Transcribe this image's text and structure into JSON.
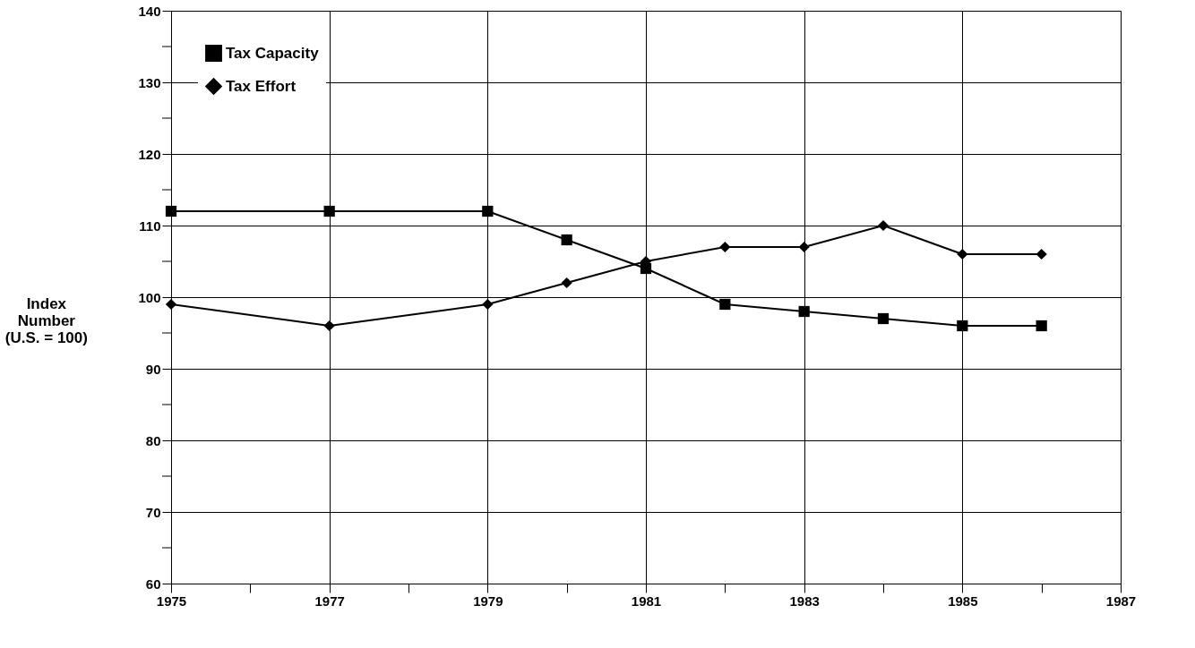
{
  "chart_data": {
    "type": "line",
    "ylabel": "Index Number (U.S. = 100)",
    "x": [
      1975,
      1977,
      1979,
      1980,
      1981,
      1982,
      1983,
      1984,
      1985,
      1986
    ],
    "series": [
      {
        "name": "Tax Capacity",
        "color": "#000000",
        "marker": "square",
        "values": [
          112,
          112,
          112,
          108,
          104,
          99,
          98,
          97,
          96,
          96
        ]
      },
      {
        "name": "Tax Effort",
        "color": "#000000",
        "marker": "diamond",
        "values": [
          99,
          96,
          99,
          102,
          105,
          107,
          107,
          110,
          106,
          106
        ]
      }
    ],
    "xlim": [
      1975,
      1987
    ],
    "xticks": [
      1975,
      {
        "value": 1976,
        "label": null
      },
      1977,
      {
        "value": 1978,
        "label": null
      },
      1979,
      {
        "value": 1980,
        "label": null
      },
      1981,
      {
        "value": 1982,
        "label": null
      },
      1983,
      {
        "value": 1984,
        "label": null
      },
      1985,
      {
        "value": 1986,
        "label": null
      },
      1987
    ],
    "ylim": [
      60,
      140
    ],
    "yticks": [
      60,
      {
        "value": 65,
        "label": null
      },
      70,
      {
        "value": 75,
        "label": null
      },
      80,
      {
        "value": 85,
        "label": null
      },
      90,
      {
        "value": 95,
        "label": null
      },
      100,
      {
        "value": 105,
        "label": null
      },
      110,
      {
        "value": 115,
        "label": null
      },
      120,
      {
        "value": 125,
        "label": null
      },
      130,
      {
        "value": 135,
        "label": null
      },
      140
    ],
    "grid": true,
    "legend": "top left",
    "line_style": "solid"
  }
}
